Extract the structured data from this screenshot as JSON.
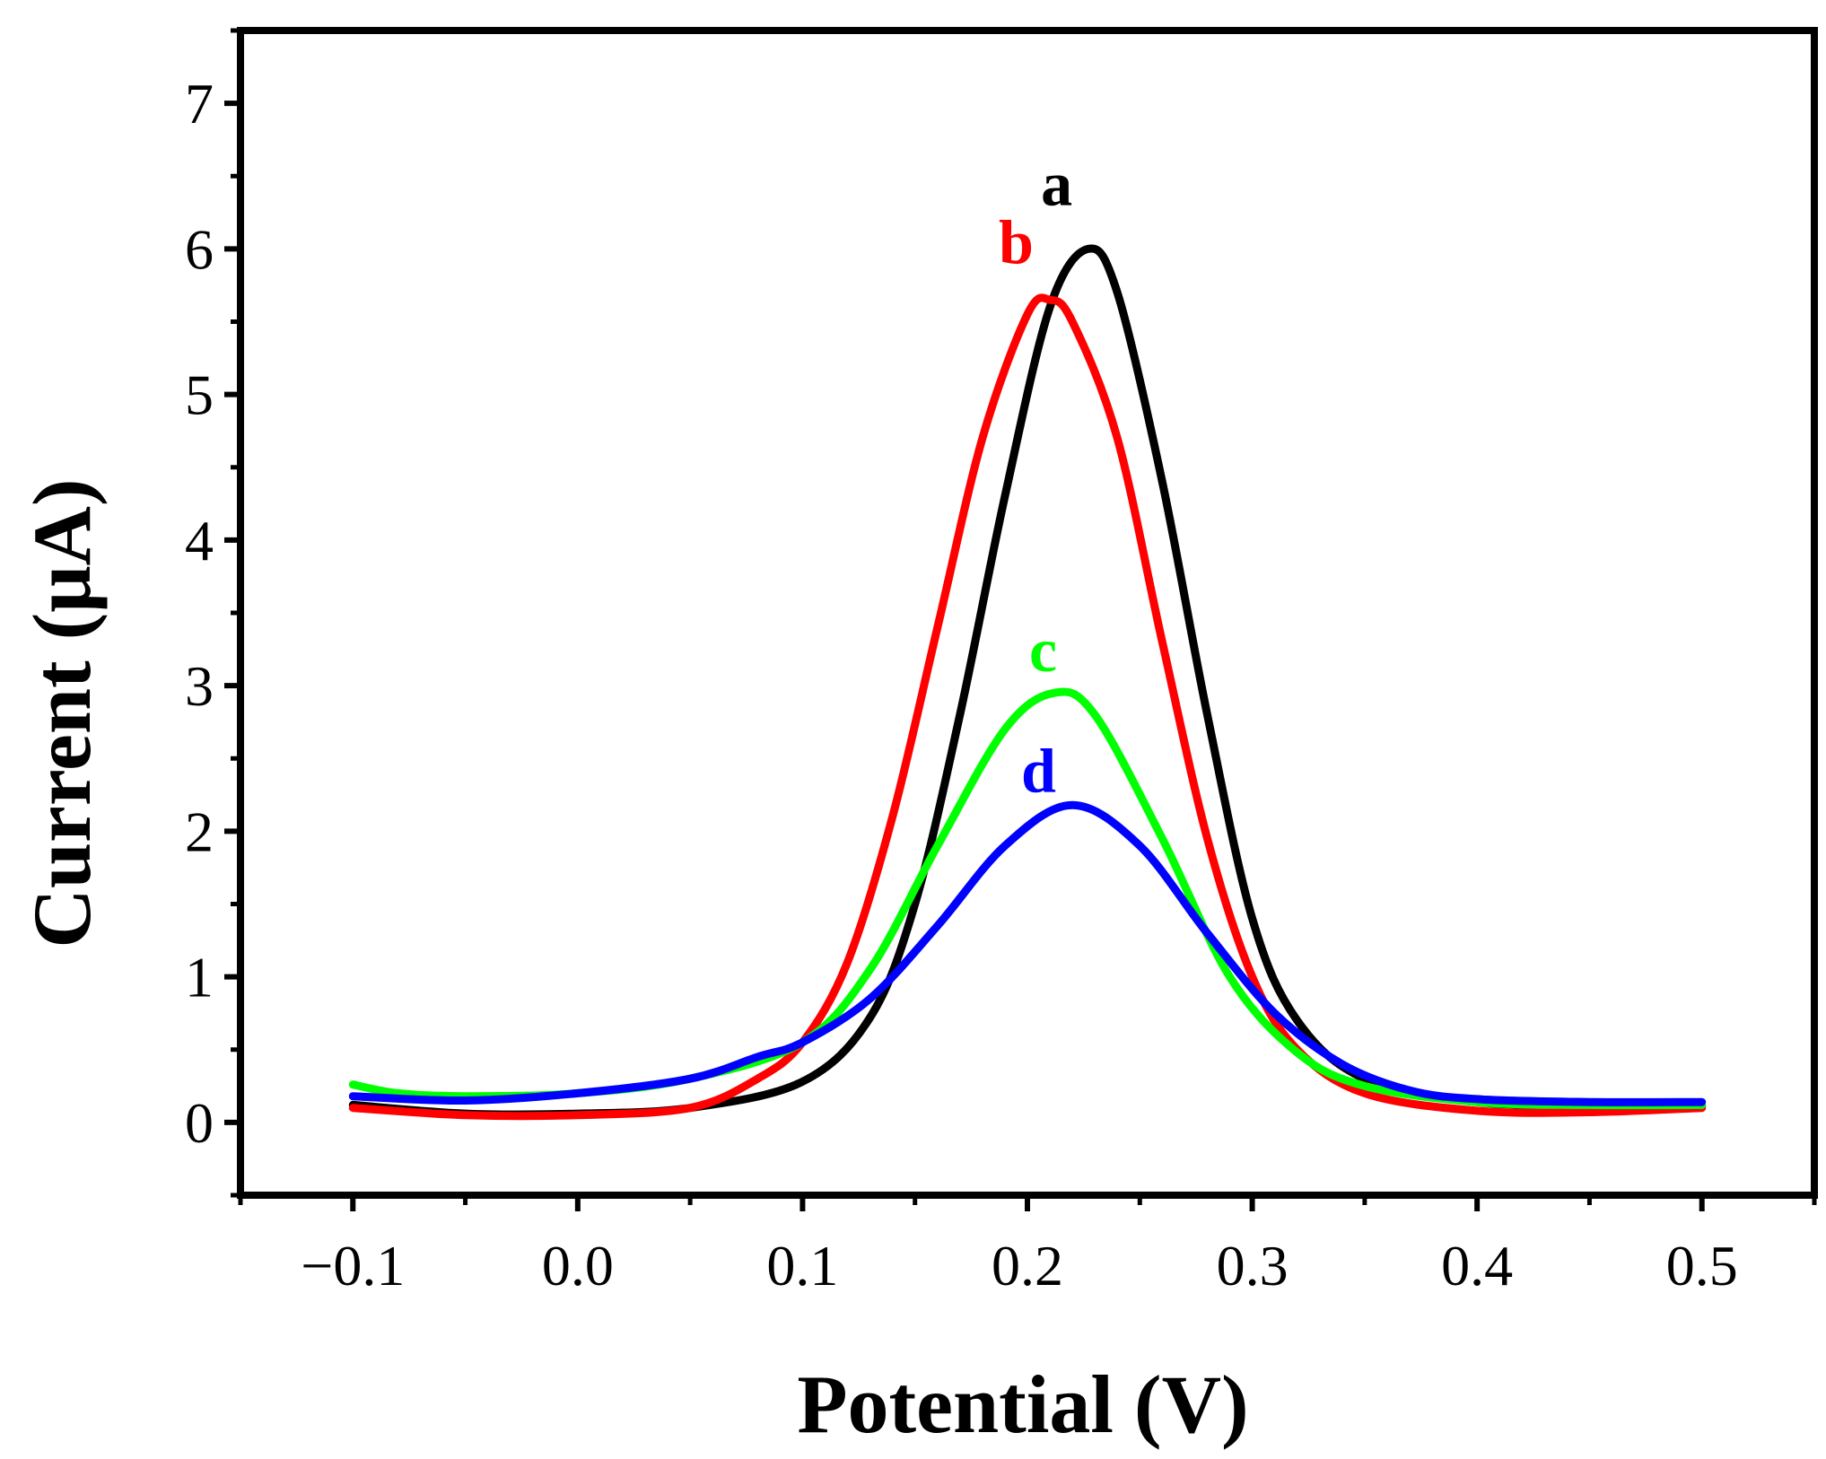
{
  "chart_data": {
    "type": "line",
    "title": "",
    "xlabel": "Potential (V)",
    "ylabel": "Current (μA)",
    "xlim": [
      -0.15,
      0.55
    ],
    "ylim": [
      -0.5,
      7.5
    ],
    "x_ticks": [
      "−0.1",
      "0.0",
      "0.1",
      "0.2",
      "0.3",
      "0.4",
      "0.5"
    ],
    "x_tick_values": [
      -0.1,
      0.0,
      0.1,
      0.2,
      0.3,
      0.4,
      0.5
    ],
    "y_ticks": [
      "0",
      "1",
      "2",
      "3",
      "4",
      "5",
      "6",
      "7"
    ],
    "y_tick_values": [
      0,
      1,
      2,
      3,
      4,
      5,
      6,
      7
    ],
    "grid": false,
    "series": [
      {
        "name": "a",
        "color": "#000000",
        "x": [
          -0.1,
          -0.05,
          0.0,
          0.05,
          0.1,
          0.13,
          0.15,
          0.17,
          0.19,
          0.21,
          0.227,
          0.24,
          0.26,
          0.28,
          0.3,
          0.32,
          0.35,
          0.4,
          0.45,
          0.5
        ],
        "values": [
          0.12,
          0.06,
          0.06,
          0.1,
          0.28,
          0.72,
          1.5,
          2.8,
          4.3,
          5.6,
          6.0,
          5.7,
          4.4,
          2.8,
          1.4,
          0.7,
          0.3,
          0.14,
          0.12,
          0.11
        ],
        "label": "a"
      },
      {
        "name": "b",
        "color": "#ff0000",
        "x": [
          -0.1,
          -0.05,
          0.0,
          0.05,
          0.08,
          0.1,
          0.12,
          0.14,
          0.16,
          0.18,
          0.2,
          0.21,
          0.22,
          0.24,
          0.26,
          0.28,
          0.3,
          0.32,
          0.35,
          0.4,
          0.45,
          0.5
        ],
        "values": [
          0.1,
          0.05,
          0.05,
          0.1,
          0.3,
          0.55,
          1.1,
          2.1,
          3.4,
          4.7,
          5.55,
          5.65,
          5.5,
          4.7,
          3.3,
          1.95,
          1.0,
          0.5,
          0.2,
          0.08,
          0.07,
          0.1
        ],
        "label": "b"
      },
      {
        "name": "c",
        "color": "#00ff00",
        "x": [
          -0.1,
          -0.08,
          -0.05,
          0.0,
          0.05,
          0.1,
          0.13,
          0.16,
          0.19,
          0.212,
          0.23,
          0.26,
          0.29,
          0.32,
          0.35,
          0.4,
          0.45,
          0.5
        ],
        "values": [
          0.26,
          0.2,
          0.18,
          0.2,
          0.3,
          0.55,
          1.05,
          1.9,
          2.7,
          2.95,
          2.8,
          1.95,
          1.0,
          0.48,
          0.25,
          0.14,
          0.12,
          0.12
        ],
        "label": "c"
      },
      {
        "name": "d",
        "color": "#0000ff",
        "x": [
          -0.1,
          -0.05,
          0.0,
          0.05,
          0.08,
          0.1,
          0.13,
          0.16,
          0.19,
          0.22,
          0.25,
          0.28,
          0.31,
          0.34,
          0.37,
          0.4,
          0.45,
          0.5
        ],
        "values": [
          0.18,
          0.15,
          0.2,
          0.3,
          0.45,
          0.55,
          0.85,
          1.35,
          1.9,
          2.18,
          1.9,
          1.3,
          0.75,
          0.4,
          0.22,
          0.16,
          0.14,
          0.14
        ],
        "label": "d"
      }
    ],
    "annotations": [
      {
        "text": "a",
        "color": "#000000",
        "x": 0.213,
        "y": 6.3
      },
      {
        "text": "b",
        "color": "#ff0000",
        "x": 0.195,
        "y": 5.9
      },
      {
        "text": "c",
        "color": "#00ff00",
        "x": 0.207,
        "y": 3.1
      },
      {
        "text": "d",
        "color": "#0000ff",
        "x": 0.205,
        "y": 2.27
      }
    ]
  }
}
